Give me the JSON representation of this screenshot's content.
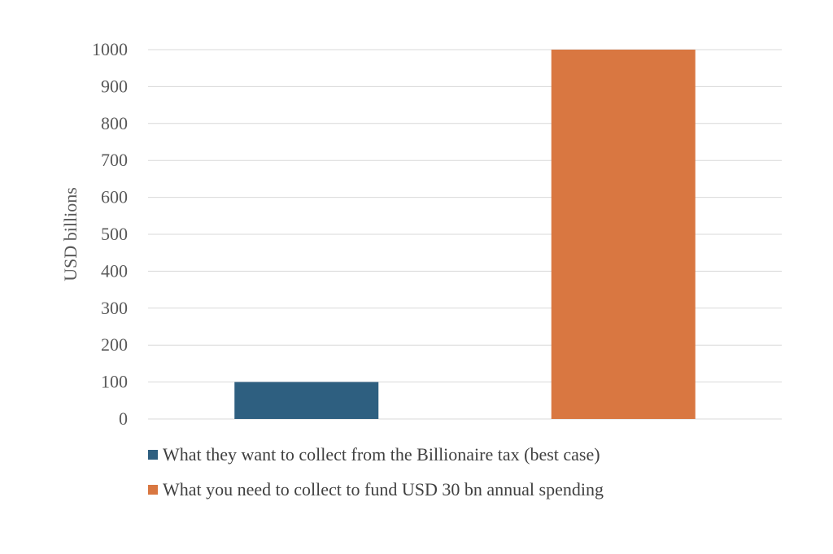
{
  "chart_data": {
    "type": "bar",
    "title": "",
    "xlabel": "",
    "ylabel": "USD billions",
    "ylim": [
      0,
      1000
    ],
    "yticks": [
      0,
      100,
      200,
      300,
      400,
      500,
      600,
      700,
      800,
      900,
      1000
    ],
    "grid": true,
    "legend_position": "bottom",
    "categories": [
      "",
      ""
    ],
    "series": [
      {
        "name": "What they want to collect from the Billionaire tax (best case)",
        "color": "#2E5F80",
        "values": [
          100,
          null
        ]
      },
      {
        "name": "What you need to collect to fund USD 30 bn annual spending",
        "color": "#D97741",
        "values": [
          null,
          1000
        ]
      }
    ]
  }
}
